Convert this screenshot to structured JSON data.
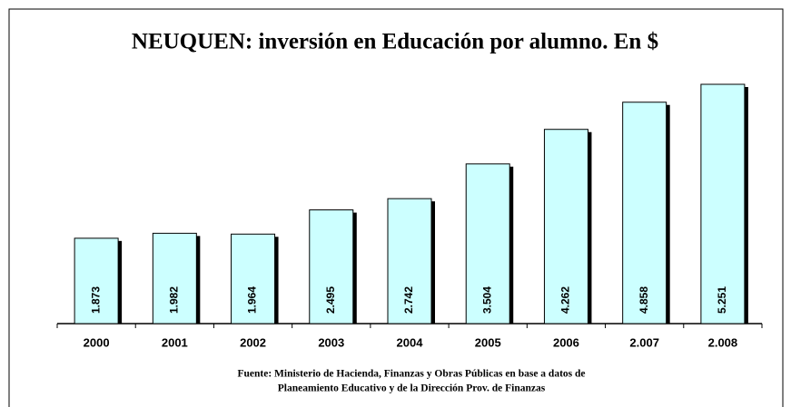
{
  "chart_data": {
    "type": "bar",
    "title": "NEUQUEN: inversión en Educación por alumno. En $",
    "categories": [
      "2000",
      "2001",
      "2002",
      "2003",
      "2004",
      "2005",
      "2006",
      "2.007",
      "2.008"
    ],
    "values": [
      1873,
      1982,
      1964,
      2495,
      2742,
      3504,
      4262,
      4858,
      5251
    ],
    "value_labels": [
      "1.873",
      "1.982",
      "1.964",
      "2.495",
      "2.742",
      "3.504",
      "4.262",
      "4.858",
      "5.251"
    ],
    "color": "#ccffff",
    "source": [
      "Fuente: Ministerio de Hacienda, Finanzas y Obras Públicas en base a datos de",
      "Planeamiento Educativo y de la Dirección Prov. de Finanzas"
    ]
  }
}
